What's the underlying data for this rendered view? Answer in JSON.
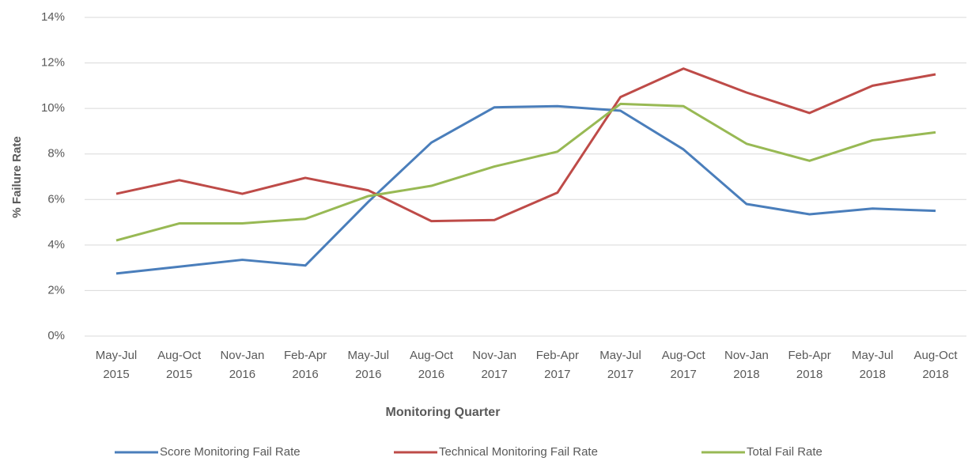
{
  "chart_data": {
    "type": "line",
    "x_label": "Monitoring Quarter",
    "y_label": "% Failure Rate",
    "categories": [
      "May-Jul 2015",
      "Aug-Oct 2015",
      "Nov-Jan 2016",
      "Feb-Apr 2016",
      "May-Jul 2016",
      "Aug-Oct 2016",
      "Nov-Jan 2017",
      "Feb-Apr 2017",
      "May-Jul 2017",
      "Aug-Oct 2017",
      "Nov-Jan 2018",
      "Feb-Apr 2018",
      "May-Jul 2018",
      "Aug-Oct 2018"
    ],
    "series": [
      {
        "name": "Score Monitoring Fail Rate",
        "color": "#4a7ebb",
        "values": [
          2.75,
          3.05,
          3.35,
          3.1,
          5.9,
          8.5,
          10.05,
          10.1,
          9.9,
          8.2,
          5.8,
          5.35,
          5.6,
          5.5
        ]
      },
      {
        "name": "Technical Monitoring Fail Rate",
        "color": "#be4b48",
        "values": [
          6.25,
          6.85,
          6.25,
          6.95,
          6.4,
          5.05,
          5.1,
          6.3,
          10.5,
          11.75,
          10.7,
          9.8,
          11.0,
          11.5
        ]
      },
      {
        "name": "Total Fail Rate",
        "color": "#98b954",
        "values": [
          4.2,
          4.95,
          4.95,
          5.15,
          6.15,
          6.6,
          7.45,
          8.1,
          10.2,
          10.1,
          8.45,
          7.7,
          8.6,
          8.95
        ]
      }
    ],
    "ylim": [
      0,
      14
    ],
    "yticks": [
      {
        "value": 0,
        "label": "0%"
      },
      {
        "value": 2,
        "label": "2%"
      },
      {
        "value": 4,
        "label": "4%"
      },
      {
        "value": 6,
        "label": "6%"
      },
      {
        "value": 8,
        "label": "8%"
      },
      {
        "value": 10,
        "label": "10%"
      },
      {
        "value": 12,
        "label": "12%"
      },
      {
        "value": 14,
        "label": "14%"
      }
    ],
    "grid": true,
    "legend": "bottom"
  }
}
